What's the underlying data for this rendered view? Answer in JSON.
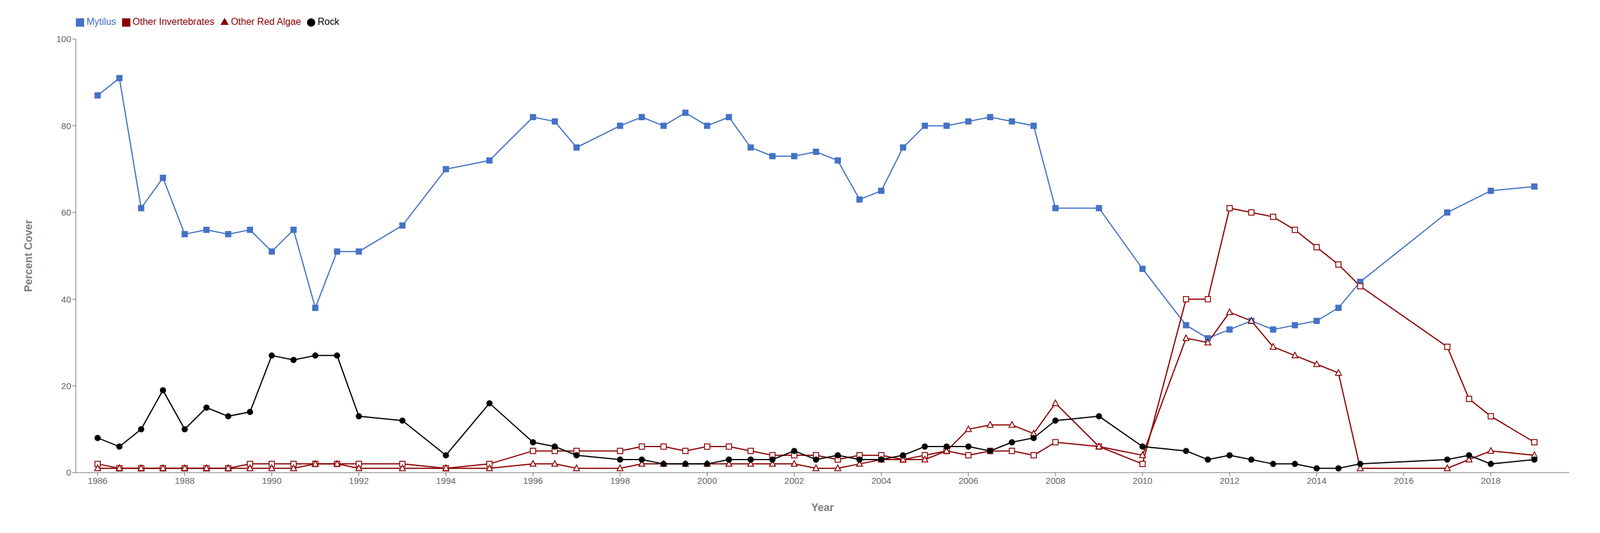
{
  "chart_data": {
    "type": "line",
    "xlabel": "Year",
    "ylabel": "Percent Cover",
    "xlim": [
      1985.5,
      2019.8
    ],
    "ylim": [
      0,
      100
    ],
    "xticks": [
      1986,
      1988,
      1990,
      1992,
      1994,
      1996,
      1998,
      2000,
      2002,
      2004,
      2006,
      2008,
      2010,
      2012,
      2014,
      2016,
      2018
    ],
    "yticks": [
      0,
      20,
      40,
      60,
      80,
      100
    ],
    "grid": false,
    "legend": "top",
    "series": [
      {
        "name": "Mytilus",
        "color": "#4472C4",
        "marker": "square",
        "x": [
          1986,
          1986.5,
          1987,
          1987.5,
          1988,
          1988.5,
          1989,
          1989.5,
          1990,
          1990.5,
          1991,
          1991.5,
          1992,
          1993,
          1994,
          1995,
          1996,
          1996.5,
          1997,
          1998,
          1998.5,
          1999,
          1999.5,
          2000,
          2000.5,
          2001,
          2001.5,
          2002,
          2002.5,
          2003,
          2003.5,
          2004,
          2004.5,
          2005,
          2005.5,
          2006,
          2006.5,
          2007,
          2007.5,
          2008,
          2009,
          2010,
          2011,
          2011.5,
          2012,
          2012.5,
          2013,
          2013.5,
          2014,
          2014.5,
          2015,
          2017,
          2018,
          2019
        ],
        "values": [
          87,
          91,
          61,
          68,
          55,
          56,
          55,
          56,
          51,
          56,
          38,
          51,
          51,
          57,
          70,
          72,
          82,
          81,
          75,
          80,
          82,
          80,
          83,
          80,
          82,
          75,
          73,
          73,
          74,
          72,
          63,
          65,
          75,
          80,
          80,
          81,
          82,
          81,
          80,
          61,
          61,
          47,
          34,
          31,
          33,
          35,
          33,
          34,
          35,
          38,
          44,
          60,
          65,
          66
        ]
      },
      {
        "name": "Other Invertebrates",
        "color": "#8B0000",
        "marker": "open_square",
        "x": [
          1986,
          1986.5,
          1987,
          1987.5,
          1988,
          1988.5,
          1989,
          1989.5,
          1990,
          1990.5,
          1991,
          1991.5,
          1992,
          1993,
          1994,
          1995,
          1996,
          1996.5,
          1997,
          1998,
          1998.5,
          1999,
          1999.5,
          2000,
          2000.5,
          2001,
          2001.5,
          2002,
          2002.5,
          2003,
          2003.5,
          2004,
          2004.5,
          2005,
          2005.5,
          2006,
          2006.5,
          2007,
          2007.5,
          2008,
          2009,
          2010,
          2011,
          2011.5,
          2012,
          2012.5,
          2013,
          2013.5,
          2014,
          2014.5,
          2015,
          2017,
          2017.5,
          2018,
          2019
        ],
        "values": [
          2,
          1,
          1,
          1,
          1,
          1,
          1,
          2,
          2,
          2,
          2,
          2,
          2,
          2,
          1,
          2,
          5,
          5,
          5,
          5,
          6,
          6,
          5,
          6,
          6,
          5,
          4,
          4,
          4,
          3,
          4,
          4,
          3,
          4,
          5,
          4,
          5,
          5,
          4,
          7,
          6,
          2,
          40,
          40,
          61,
          60,
          59,
          56,
          52,
          48,
          43,
          29,
          17,
          13,
          7
        ]
      },
      {
        "name": "Other Red Algae",
        "color": "#8B0000",
        "marker": "open_triangle",
        "x": [
          1986,
          1986.5,
          1987,
          1987.5,
          1988,
          1988.5,
          1989,
          1989.5,
          1990,
          1990.5,
          1991,
          1991.5,
          1992,
          1993,
          1994,
          1995,
          1996,
          1996.5,
          1997,
          1998,
          1998.5,
          1999,
          1999.5,
          2000,
          2000.5,
          2001,
          2001.5,
          2002,
          2002.5,
          2003,
          2003.5,
          2004,
          2004.5,
          2005,
          2005.5,
          2006,
          2006.5,
          2007,
          2007.5,
          2008,
          2009,
          2010,
          2011,
          2011.5,
          2012,
          2012.5,
          2013,
          2013.5,
          2014,
          2014.5,
          2015,
          2017,
          2017.5,
          2018,
          2019
        ],
        "values": [
          1,
          1,
          1,
          1,
          1,
          1,
          1,
          1,
          1,
          1,
          2,
          2,
          1,
          1,
          1,
          1,
          2,
          2,
          1,
          1,
          2,
          2,
          2,
          2,
          2,
          2,
          2,
          2,
          1,
          1,
          2,
          3,
          3,
          3,
          5,
          10,
          11,
          11,
          9,
          16,
          6,
          4,
          31,
          30,
          37,
          35,
          29,
          27,
          25,
          23,
          1,
          1,
          3,
          5,
          4
        ]
      },
      {
        "name": "Rock",
        "color": "#000000",
        "marker": "circle",
        "x": [
          1986,
          1986.5,
          1987,
          1987.5,
          1988,
          1988.5,
          1989,
          1989.5,
          1990,
          1990.5,
          1991,
          1991.5,
          1992,
          1993,
          1994,
          1995,
          1996,
          1996.5,
          1997,
          1998,
          1998.5,
          1999,
          1999.5,
          2000,
          2000.5,
          2001,
          2001.5,
          2002,
          2002.5,
          2003,
          2003.5,
          2004,
          2004.5,
          2005,
          2005.5,
          2006,
          2006.5,
          2007,
          2007.5,
          2008,
          2009,
          2010,
          2011,
          2011.5,
          2012,
          2012.5,
          2013,
          2013.5,
          2014,
          2014.5,
          2015,
          2017,
          2017.5,
          2018,
          2019
        ],
        "values": [
          8,
          6,
          10,
          19,
          10,
          15,
          13,
          14,
          27,
          26,
          27,
          27,
          13,
          12,
          4,
          16,
          7,
          6,
          4,
          3,
          3,
          2,
          2,
          2,
          3,
          3,
          3,
          5,
          3,
          4,
          3,
          3,
          4,
          6,
          6,
          6,
          5,
          7,
          8,
          12,
          13,
          6,
          5,
          3,
          4,
          3,
          2,
          2,
          1,
          1,
          2,
          3,
          4,
          2,
          3
        ]
      }
    ]
  }
}
